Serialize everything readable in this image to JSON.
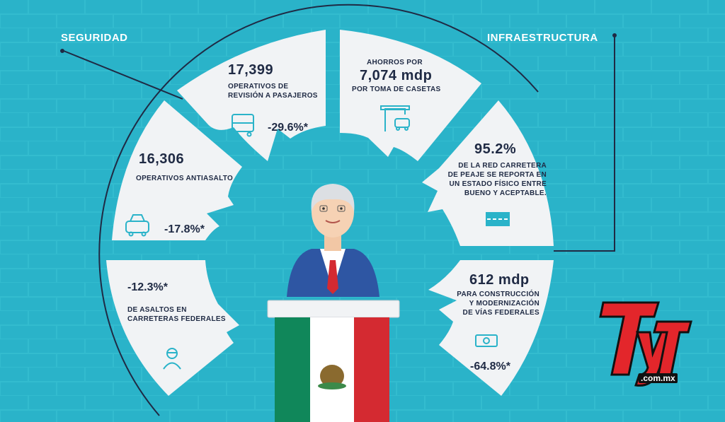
{
  "labels": {
    "left": "SEGURIDAD",
    "right": "INFRAESTRUCTURA"
  },
  "segments": {
    "s1": {
      "value": "17,399",
      "text": [
        "OPERATIVOS DE",
        "REVISIÓN A PASAJEROS"
      ],
      "pct": "-29.6%*",
      "icon": "bus-icon"
    },
    "s2": {
      "value": "16,306",
      "text": [
        "OPERATIVOS ANTIASALTO"
      ],
      "pct": "-17.8%*",
      "icon": "police-car-icon"
    },
    "s3": {
      "value": "-12.3%*",
      "text": [
        "DE ASALTOS EN",
        "CARRETERAS FEDERALES"
      ],
      "icon": "thief-icon"
    },
    "r1": {
      "pre": "AHORROS POR",
      "value": "7,074 mdp",
      "text": [
        "POR TOMA DE CASETAS"
      ],
      "icon": "toll-booth-icon"
    },
    "r2": {
      "value": "95.2%",
      "text": [
        "DE LA RED CARRETERA",
        "DE PEAJE SE REPORTA EN",
        "UN ESTADO FÍSICO ENTRE",
        "BUENO Y ACEPTABLE."
      ],
      "icon": "road-icon"
    },
    "r3": {
      "value": "612 mdp",
      "text": [
        "PARA CONSTRUCCIÓN",
        "Y MODERNIZACIÓN",
        "DE VÍAS FEDERALES"
      ],
      "pct": "-64.8%*",
      "icon": "money-icon"
    }
  },
  "logo": {
    "brand": "TyT",
    "domain": ".com.mx"
  },
  "colors": {
    "background": "#2ab3c9",
    "panel": "#f1f3f5",
    "navy": "#1f2a44",
    "accent_red": "#e3262b",
    "flag_green": "#10875a",
    "flag_red": "#d42a31",
    "suit": "#2e56a3"
  }
}
